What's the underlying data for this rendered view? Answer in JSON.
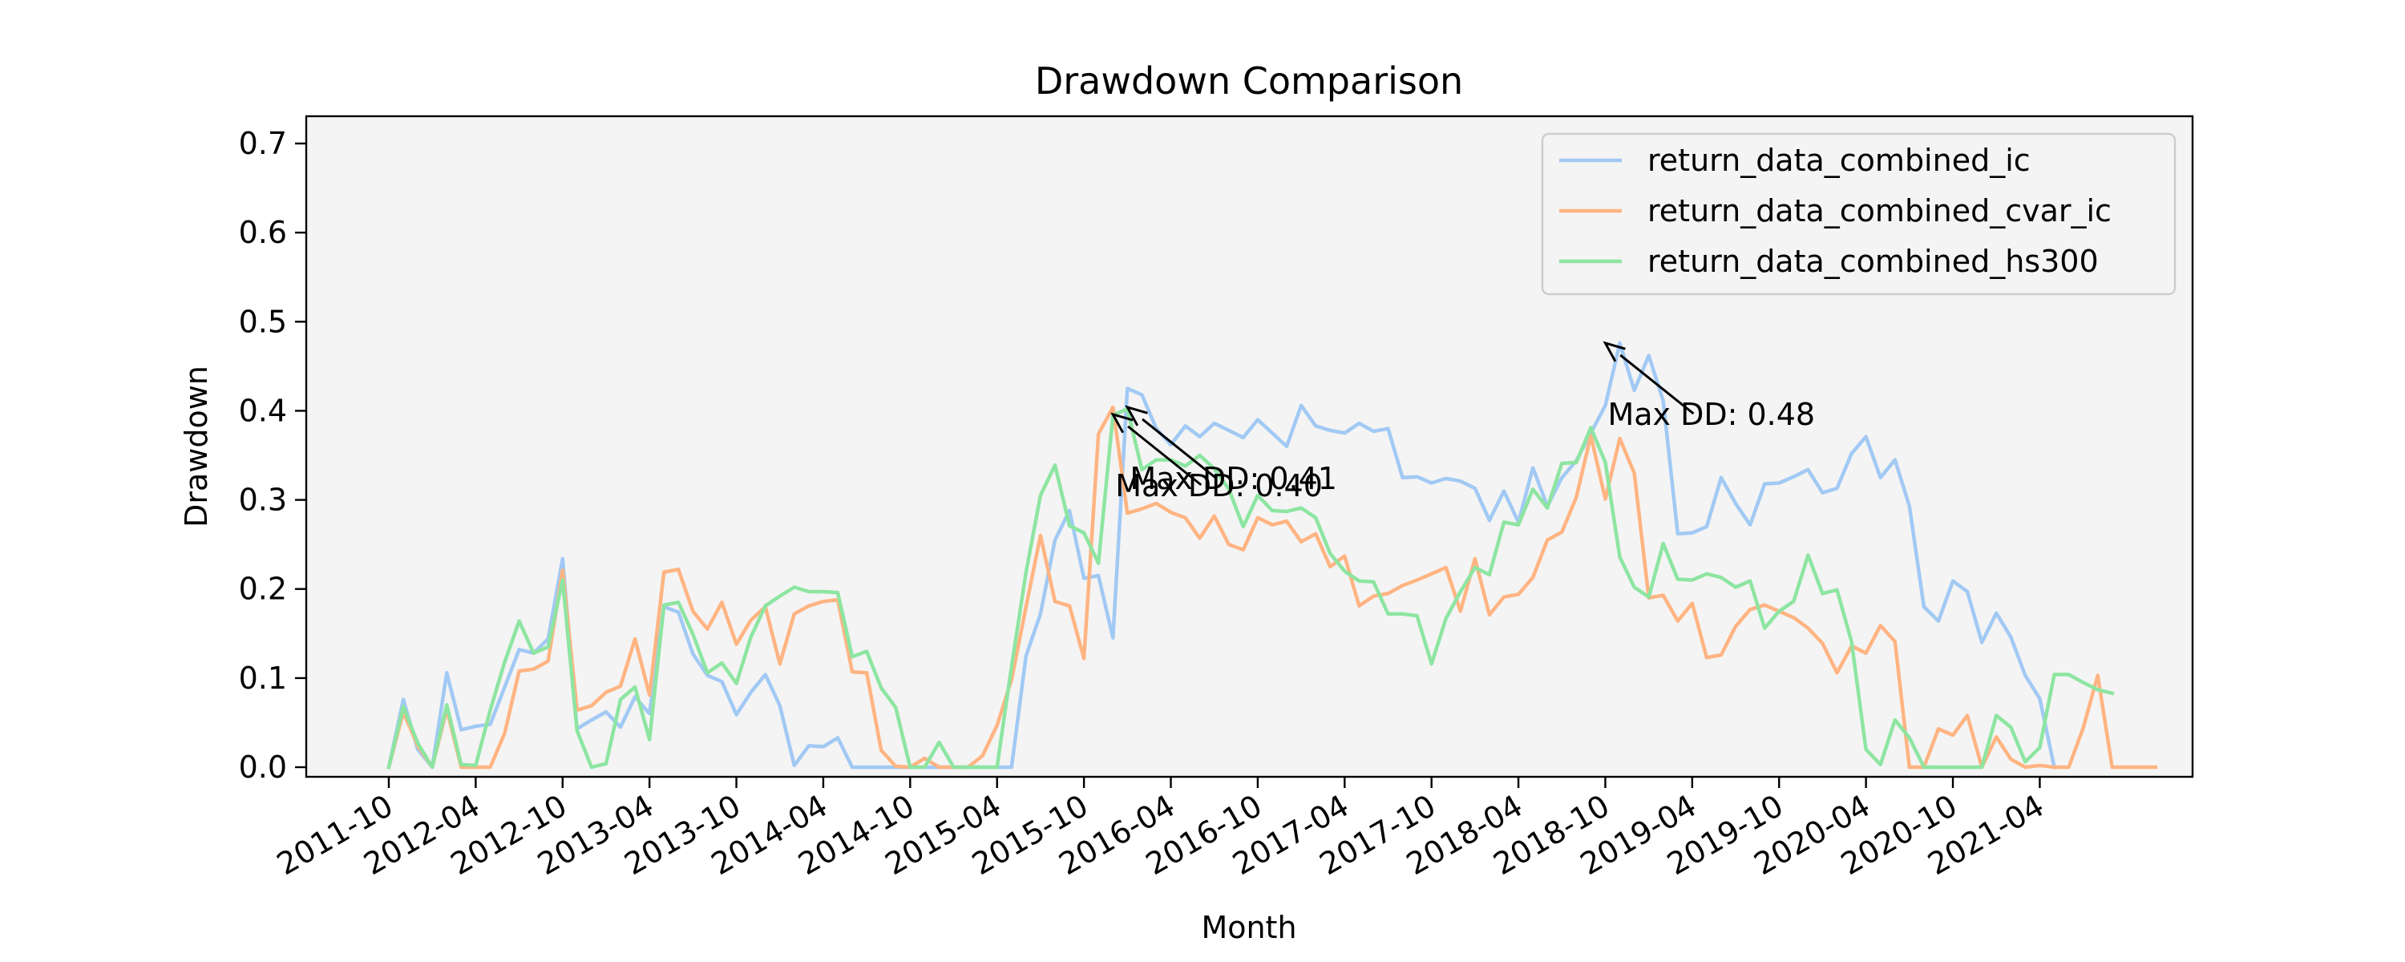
{
  "chart_data": {
    "type": "line",
    "title": "Drawdown Comparison",
    "xlabel": "Month",
    "ylabel": "Drawdown",
    "ylim": [
      0,
      0.7
    ],
    "yticks": [
      "0.0",
      "0.1",
      "0.2",
      "0.3",
      "0.4",
      "0.5",
      "0.6",
      "0.7"
    ],
    "xticks": [
      "2011-10",
      "2012-04",
      "2012-10",
      "2013-04",
      "2013-10",
      "2014-04",
      "2014-10",
      "2015-04",
      "2015-10",
      "2016-04",
      "2016-10",
      "2017-04",
      "2017-10",
      "2018-04",
      "2018-10",
      "2019-04",
      "2019-10",
      "2020-04",
      "2020-10",
      "2021-04"
    ],
    "x_start": "2011-10",
    "x_end": "2021-09",
    "grid": false,
    "legend_position": "top-right",
    "colors": {
      "return_data_combined_ic": "#a1c9f4",
      "return_data_combined_cvar_ic": "#ffb482",
      "return_data_combined_hs300": "#8de5a1",
      "background": "#f4f4f4"
    },
    "series": [
      {
        "name": "return_data_combined_ic",
        "color": "#a1c9f4",
        "values": [
          0,
          0.076,
          0.02,
          0,
          0.106,
          0.042,
          0.046,
          0.048,
          0.09,
          0.132,
          0.128,
          0.144,
          0.234,
          0.043,
          0.053,
          0.062,
          0.045,
          0.079,
          0.06,
          0.18,
          0.174,
          0.127,
          0.103,
          0.096,
          0.059,
          0.084,
          0.104,
          0.069,
          0.002,
          0.024,
          0.023,
          0.033,
          0,
          0,
          0,
          0,
          0,
          0,
          0,
          0,
          0,
          0,
          0,
          0,
          0.125,
          0.172,
          0.255,
          0.288,
          0.212,
          0.215,
          0.145,
          0.425,
          0.418,
          0.38,
          0.362,
          0.383,
          0.371,
          0.386,
          0.378,
          0.37,
          0.39,
          0.375,
          0.36,
          0.406,
          0.383,
          0.378,
          0.375,
          0.386,
          0.377,
          0.38,
          0.325,
          0.326,
          0.319,
          0.324,
          0.321,
          0.313,
          0.277,
          0.31,
          0.275,
          0.336,
          0.293,
          0.325,
          0.344,
          0.375,
          0.406,
          0.476,
          0.423,
          0.462,
          0.411,
          0.262,
          0.263,
          0.27,
          0.325,
          0.296,
          0.272,
          0.318,
          0.319,
          0.326,
          0.334,
          0.308,
          0.313,
          0.352,
          0.371,
          0.325,
          0.345,
          0.293,
          0.18,
          0.164,
          0.209,
          0.197,
          0.14,
          0.173,
          0.146,
          0.103,
          0.077,
          0,
          null,
          null,
          null,
          null,
          null,
          null,
          null,
          null,
          null
        ]
      },
      {
        "name": "return_data_combined_cvar_ic",
        "color": "#ffb482",
        "values": [
          0,
          0.062,
          0.024,
          0,
          0.065,
          0,
          0,
          0,
          0.038,
          0.108,
          0.11,
          0.119,
          0.221,
          0.064,
          0.069,
          0.084,
          0.091,
          0.144,
          0.081,
          0.219,
          0.222,
          0.175,
          0.155,
          0.185,
          0.138,
          0.165,
          0.18,
          0.116,
          0.172,
          0.181,
          0.186,
          0.188,
          0.107,
          0.106,
          0.019,
          0.001,
          0,
          0.01,
          0,
          0,
          0,
          0.013,
          0.047,
          0.098,
          0.18,
          0.26,
          0.186,
          0.181,
          0.122,
          0.374,
          0.404,
          0.285,
          0.29,
          0.296,
          0.286,
          0.28,
          0.257,
          0.282,
          0.25,
          0.244,
          0.28,
          0.272,
          0.276,
          0.253,
          0.262,
          0.225,
          0.237,
          0.181,
          0.192,
          0.195,
          0.204,
          0.21,
          0.217,
          0.224,
          0.175,
          0.234,
          0.171,
          0.191,
          0.194,
          0.213,
          0.255,
          0.264,
          0.303,
          0.372,
          0.301,
          0.369,
          0.33,
          0.19,
          0.193,
          0.164,
          0.184,
          0.123,
          0.126,
          0.158,
          0.177,
          0.182,
          0.175,
          0.168,
          0.156,
          0.139,
          0.106,
          0.136,
          0.128,
          0.159,
          0.141,
          0,
          0,
          0.043,
          0.036,
          0.058,
          0,
          0.034,
          0.009,
          0,
          0.002,
          0,
          0,
          0.044,
          0.103,
          0,
          0,
          0,
          0
        ]
      },
      {
        "name": "return_data_combined_hs300",
        "color": "#8de5a1",
        "values": [
          0,
          0.068,
          0.027,
          0,
          0.07,
          0.003,
          0.002,
          0.064,
          0.118,
          0.164,
          0.128,
          0.135,
          0.21,
          0.041,
          0,
          0.004,
          0.076,
          0.09,
          0.031,
          0.182,
          0.185,
          0.149,
          0.106,
          0.117,
          0.094,
          0.146,
          0.181,
          0.192,
          0.202,
          0.197,
          0.197,
          0.196,
          0.124,
          0.13,
          0.089,
          0.067,
          0,
          0,
          0.028,
          0,
          0,
          0,
          0,
          0.113,
          0.219,
          0.305,
          0.339,
          0.271,
          0.263,
          0.229,
          0.395,
          0.402,
          0.334,
          0.345,
          0.345,
          0.338,
          0.35,
          0.335,
          0.312,
          0.27,
          0.305,
          0.288,
          0.287,
          0.291,
          0.28,
          0.24,
          0.22,
          0.209,
          0.208,
          0.172,
          0.172,
          0.17,
          0.116,
          0.167,
          0.197,
          0.224,
          0.216,
          0.275,
          0.272,
          0.312,
          0.291,
          0.341,
          0.342,
          0.381,
          0.342,
          0.236,
          0.202,
          0.191,
          0.251,
          0.211,
          0.21,
          0.217,
          0.213,
          0.202,
          0.209,
          0.156,
          0.175,
          0.186,
          0.238,
          0.195,
          0.199,
          0.141,
          0.02,
          0.003,
          0.053,
          0.033,
          0,
          0,
          0,
          0,
          0,
          0.058,
          0.045,
          0.006,
          0.022,
          0.104,
          0.104,
          0.095,
          0.087,
          0.083,
          null,
          null,
          null
        ]
      }
    ],
    "annotations": [
      {
        "text": "Max DD: 0.41",
        "point": [
          "2016-01",
          0.404
        ]
      },
      {
        "text": "Max DD: 0.40",
        "point": [
          "2015-12",
          0.396
        ]
      },
      {
        "text": "Max DD: 0.48",
        "point": [
          "2018-10",
          0.476
        ]
      }
    ]
  }
}
